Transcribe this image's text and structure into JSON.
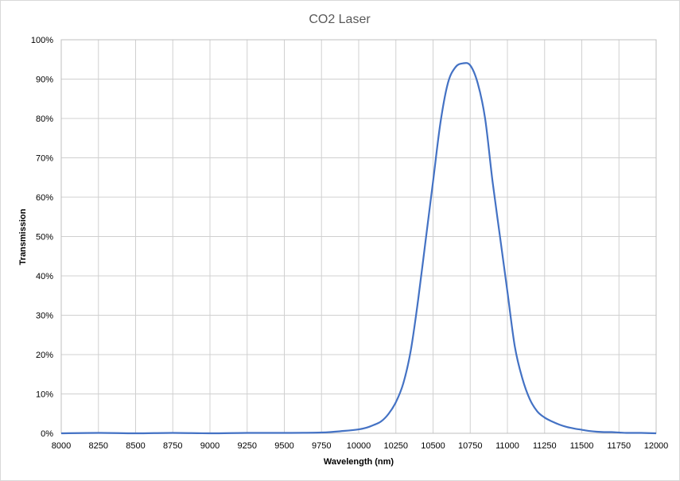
{
  "chart_data": {
    "type": "line",
    "title": "CO2 Laser",
    "xlabel": "Wavelength (nm)",
    "ylabel": "Transmission",
    "xlim": [
      8000,
      12000
    ],
    "ylim": [
      0,
      100
    ],
    "x_ticks": [
      8000,
      8250,
      8500,
      8750,
      9000,
      9250,
      9500,
      9750,
      10000,
      10250,
      10500,
      10750,
      11000,
      11250,
      11500,
      11750,
      12000
    ],
    "y_ticks": [
      "0%",
      "10%",
      "20%",
      "30%",
      "40%",
      "50%",
      "60%",
      "70%",
      "80%",
      "90%",
      "100%"
    ],
    "grid": true,
    "legend": "none",
    "series": [
      {
        "color": "#4472c4",
        "x": [
          8000,
          8250,
          8500,
          8750,
          9000,
          9250,
          9500,
          9750,
          9900,
          10000,
          10050,
          10100,
          10150,
          10200,
          10250,
          10300,
          10350,
          10400,
          10450,
          10500,
          10550,
          10600,
          10650,
          10700,
          10750,
          10800,
          10850,
          10900,
          10950,
          11000,
          11050,
          11100,
          11150,
          11200,
          11250,
          11300,
          11350,
          11400,
          11450,
          11500,
          11550,
          11600,
          11650,
          11700,
          11750,
          11800,
          11850,
          11900,
          12000
        ],
        "y": [
          0,
          0.1,
          0,
          0.1,
          0,
          0.1,
          0.1,
          0.2,
          0.6,
          1.0,
          1.4,
          2.1,
          3.0,
          4.9,
          7.9,
          12.7,
          21.0,
          34.0,
          49.0,
          64.0,
          79.0,
          89.0,
          93.0,
          94.0,
          93.5,
          89.0,
          80.0,
          64.0,
          50.0,
          36.0,
          22.0,
          14.0,
          8.7,
          5.6,
          4.0,
          3.0,
          2.2,
          1.6,
          1.2,
          0.9,
          0.6,
          0.4,
          0.3,
          0.3,
          0.2,
          0.1,
          0.1,
          0.1,
          0
        ]
      }
    ]
  }
}
